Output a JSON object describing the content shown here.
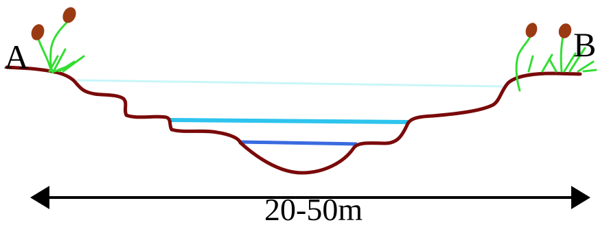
{
  "labels": {
    "point_a": "A",
    "point_b": "B",
    "width": "20-50m"
  },
  "colors": {
    "bank": "#7a0a0a",
    "vegetation_stem": "#33dd33",
    "vegetation_head": "#9a3a12",
    "flood_level": "#c8f6f8",
    "normal_level": "#2ec4ee",
    "low_level": "#3a6ae0",
    "arrow": "#000000"
  },
  "icons": {
    "vegetation": "cattail-plant-icon",
    "width_arrow": "double-headed-arrow-icon"
  }
}
